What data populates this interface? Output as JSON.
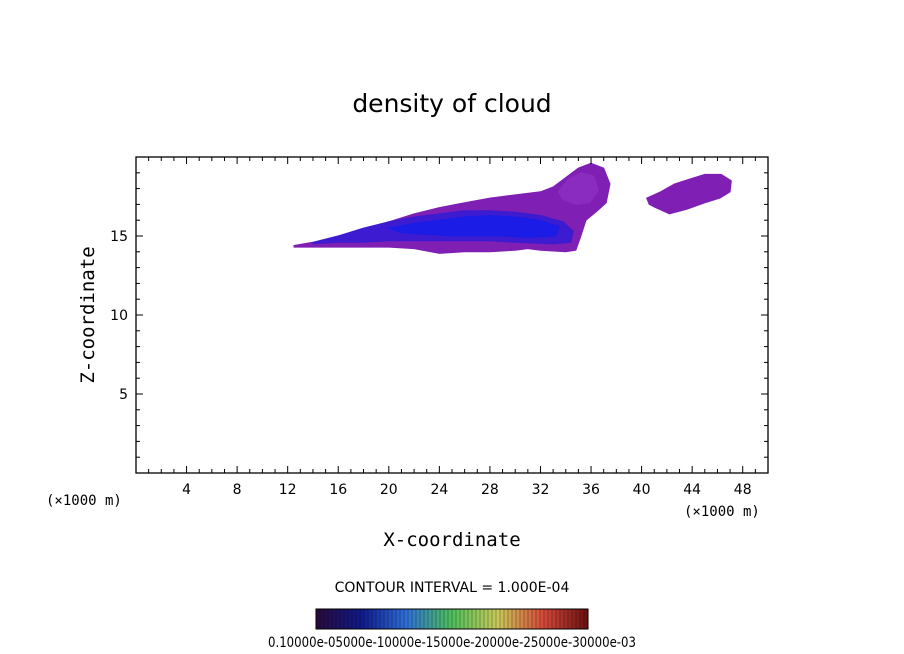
{
  "chart_data": {
    "type": "contour",
    "title": "density of cloud",
    "xlabel": "X-coordinate",
    "ylabel": "Z-coordinate",
    "x_unit": "(×1000 m)",
    "y_unit": "(×1000 m)",
    "xlim": [
      0,
      50
    ],
    "ylim": [
      0,
      20
    ],
    "x_ticks": [
      4,
      8,
      12,
      16,
      20,
      24,
      28,
      32,
      36,
      40,
      44,
      48
    ],
    "y_ticks": [
      5,
      10,
      15
    ],
    "contour_interval_text": "CONTOUR INTERVAL = 1.000E-04",
    "colorbar_labels_text": "0.10000e-05000e-10000e-15000e-20000e-25000e-30000e-03",
    "colorbar_colors": [
      "#2a0a3a",
      "#101a8a",
      "#2f6fd6",
      "#4fbf5a",
      "#c9c95a",
      "#d64a3a",
      "#6a1010"
    ],
    "regions": [
      {
        "name": "main cloud",
        "fill": "#7f1fb4",
        "outline": [
          [
            12.5,
            14.4
          ],
          [
            14,
            14.6
          ],
          [
            16,
            15.0
          ],
          [
            18,
            15.4
          ],
          [
            20,
            15.9
          ],
          [
            22,
            16.4
          ],
          [
            24,
            16.8
          ],
          [
            26,
            17.1
          ],
          [
            28,
            17.4
          ],
          [
            30,
            17.6
          ],
          [
            32,
            17.8
          ],
          [
            33,
            18.1
          ],
          [
            34,
            18.7
          ],
          [
            35,
            19.3
          ],
          [
            36,
            19.6
          ],
          [
            37,
            19.3
          ],
          [
            37.5,
            18.3
          ],
          [
            37.2,
            17.1
          ],
          [
            36.5,
            16.6
          ],
          [
            35.6,
            16.0
          ],
          [
            35.2,
            15.0
          ],
          [
            34.8,
            14.1
          ],
          [
            34.0,
            14.0
          ],
          [
            32,
            14.1
          ],
          [
            31,
            14.2
          ],
          [
            30,
            14.1
          ],
          [
            28,
            14.0
          ],
          [
            26,
            14.0
          ],
          [
            24,
            13.9
          ],
          [
            22,
            14.2
          ],
          [
            20,
            14.3
          ],
          [
            18,
            14.3
          ],
          [
            16,
            14.3
          ],
          [
            14,
            14.3
          ],
          [
            12.5,
            14.3
          ]
        ]
      },
      {
        "name": "main core",
        "fill": "#3d1bd0",
        "outline": [
          [
            14,
            14.6
          ],
          [
            16,
            15.0
          ],
          [
            18,
            15.5
          ],
          [
            20,
            15.9
          ],
          [
            22,
            16.2
          ],
          [
            24,
            16.4
          ],
          [
            26,
            16.6
          ],
          [
            28,
            16.6
          ],
          [
            30,
            16.5
          ],
          [
            32,
            16.3
          ],
          [
            33.8,
            15.9
          ],
          [
            34.6,
            15.3
          ],
          [
            34.4,
            14.6
          ],
          [
            33,
            14.5
          ],
          [
            30,
            14.6
          ],
          [
            28,
            14.7
          ],
          [
            26,
            14.7
          ],
          [
            24,
            14.7
          ],
          [
            22,
            14.7
          ],
          [
            20,
            14.7
          ],
          [
            18,
            14.6
          ],
          [
            16,
            14.6
          ],
          [
            14,
            14.5
          ]
        ]
      },
      {
        "name": "inner core",
        "fill": "#1b1ce6",
        "outline": [
          [
            20,
            15.5
          ],
          [
            22,
            15.8
          ],
          [
            24,
            16.0
          ],
          [
            26,
            16.2
          ],
          [
            28,
            16.3
          ],
          [
            30,
            16.2
          ],
          [
            32,
            16.0
          ],
          [
            33.5,
            15.6
          ],
          [
            33.2,
            15.0
          ],
          [
            31,
            14.9
          ],
          [
            29,
            15.0
          ],
          [
            27,
            15.0
          ],
          [
            25,
            15.0
          ],
          [
            23,
            15.1
          ],
          [
            21,
            15.2
          ]
        ]
      },
      {
        "name": "upper bulge",
        "fill": "#8a2cc0",
        "outline": [
          [
            33.4,
            17.8
          ],
          [
            34.2,
            18.6
          ],
          [
            35.2,
            19.0
          ],
          [
            36.2,
            18.8
          ],
          [
            36.6,
            17.9
          ],
          [
            35.9,
            17.1
          ],
          [
            34.8,
            17.0
          ],
          [
            33.8,
            17.3
          ]
        ]
      },
      {
        "name": "right cloud",
        "fill": "#7f1fb4",
        "outline": [
          [
            40.4,
            17.4
          ],
          [
            41.5,
            17.8
          ],
          [
            42.6,
            18.3
          ],
          [
            43.8,
            18.6
          ],
          [
            45.0,
            18.9
          ],
          [
            46.3,
            18.9
          ],
          [
            47.1,
            18.5
          ],
          [
            47.0,
            17.8
          ],
          [
            46.2,
            17.4
          ],
          [
            45.0,
            17.1
          ],
          [
            43.6,
            16.7
          ],
          [
            42.2,
            16.4
          ],
          [
            41.1,
            16.8
          ],
          [
            40.6,
            17.0
          ]
        ]
      }
    ]
  }
}
